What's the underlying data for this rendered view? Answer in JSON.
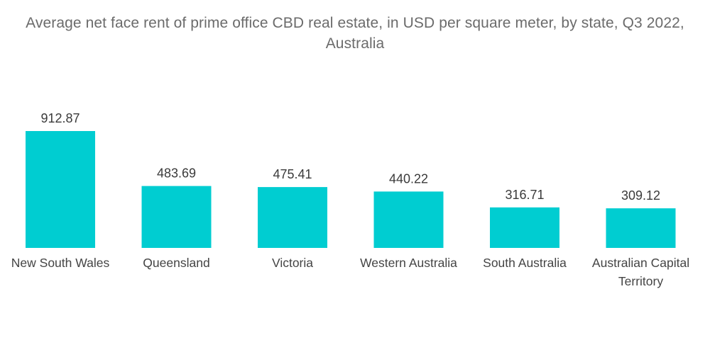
{
  "chart_data": {
    "type": "bar",
    "title": "Average net face rent of prime office CBD real estate, in USD per square meter, by state, Q3 2022, Australia",
    "categories": [
      "New South Wales",
      "Queensland",
      "Victoria",
      "Western Australia",
      "South Australia",
      "Australian Capital Territory"
    ],
    "category_lines": [
      [
        "New South Wales"
      ],
      [
        "Queensland"
      ],
      [
        "Victoria"
      ],
      [
        "Western Australia"
      ],
      [
        "South Australia"
      ],
      [
        "Australian Capital",
        "Territory"
      ]
    ],
    "values": [
      912.87,
      483.69,
      475.41,
      440.22,
      316.71,
      309.12
    ],
    "value_labels": [
      "912.87",
      "483.69",
      "475.41",
      "440.22",
      "316.71",
      "309.12"
    ],
    "xlabel": "",
    "ylabel": "",
    "ylim": [
      0,
      912.87
    ],
    "grid": false,
    "legend": "none",
    "bar_color": "#00cdd1"
  }
}
